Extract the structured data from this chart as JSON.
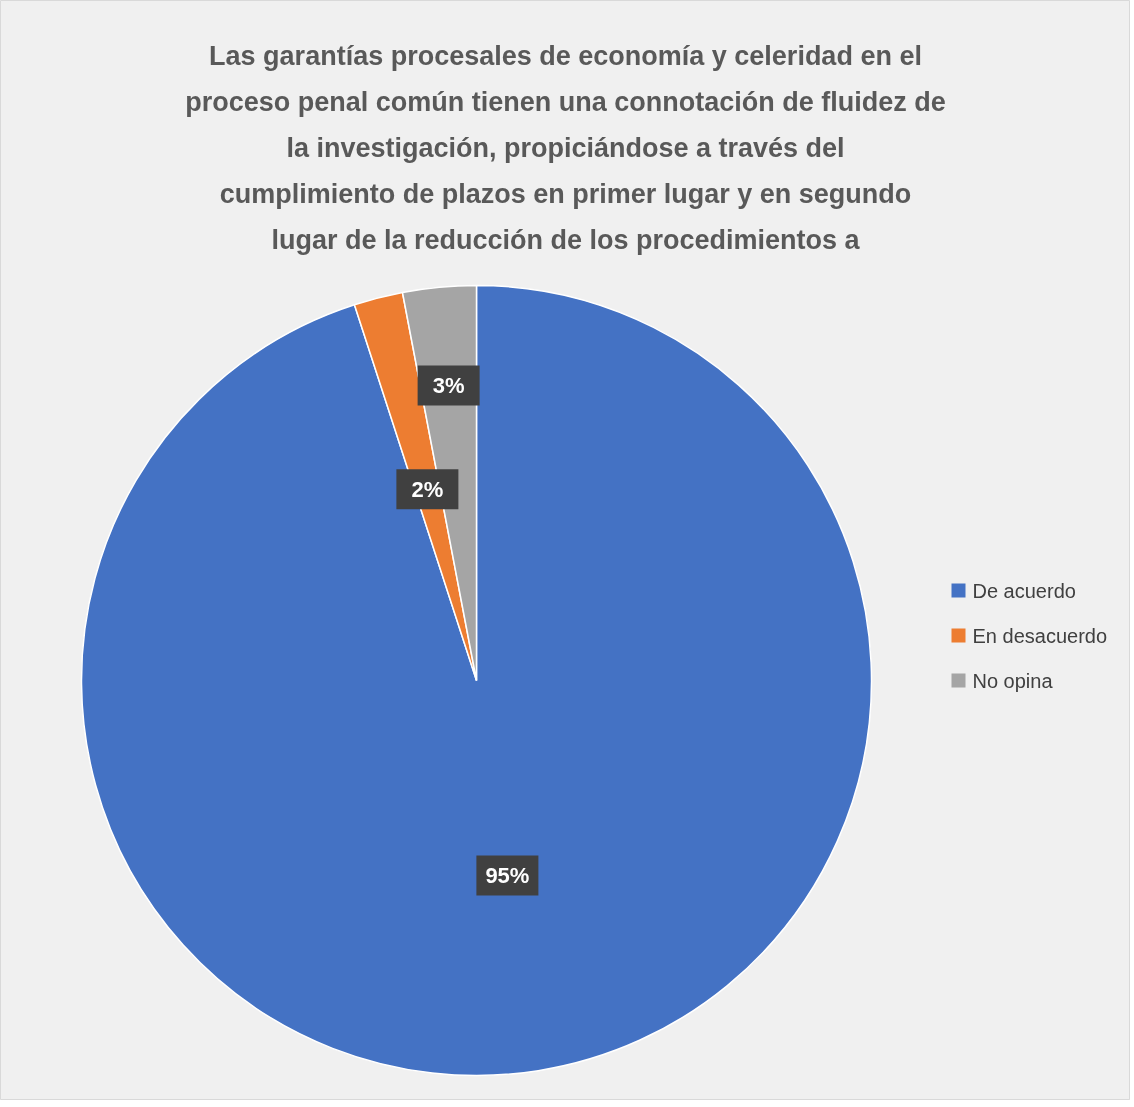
{
  "chart_data": {
    "type": "pie",
    "title": "Las garantías procesales de economía y celeridad en el proceso penal común tienen una connotación de fluidez de la investigación, propiciándose a través del cumplimiento de plazos en primer lugar y en segundo lugar de la reducción de los procedimientos a",
    "categories": [
      "De acuerdo",
      "En desacuerdo",
      "No opina"
    ],
    "values": [
      95,
      2,
      3
    ],
    "colors": [
      "#4472c4",
      "#ed7d31",
      "#a5a5a5"
    ],
    "value_labels": [
      "95%",
      "2%",
      "3%"
    ],
    "legend": "right"
  }
}
